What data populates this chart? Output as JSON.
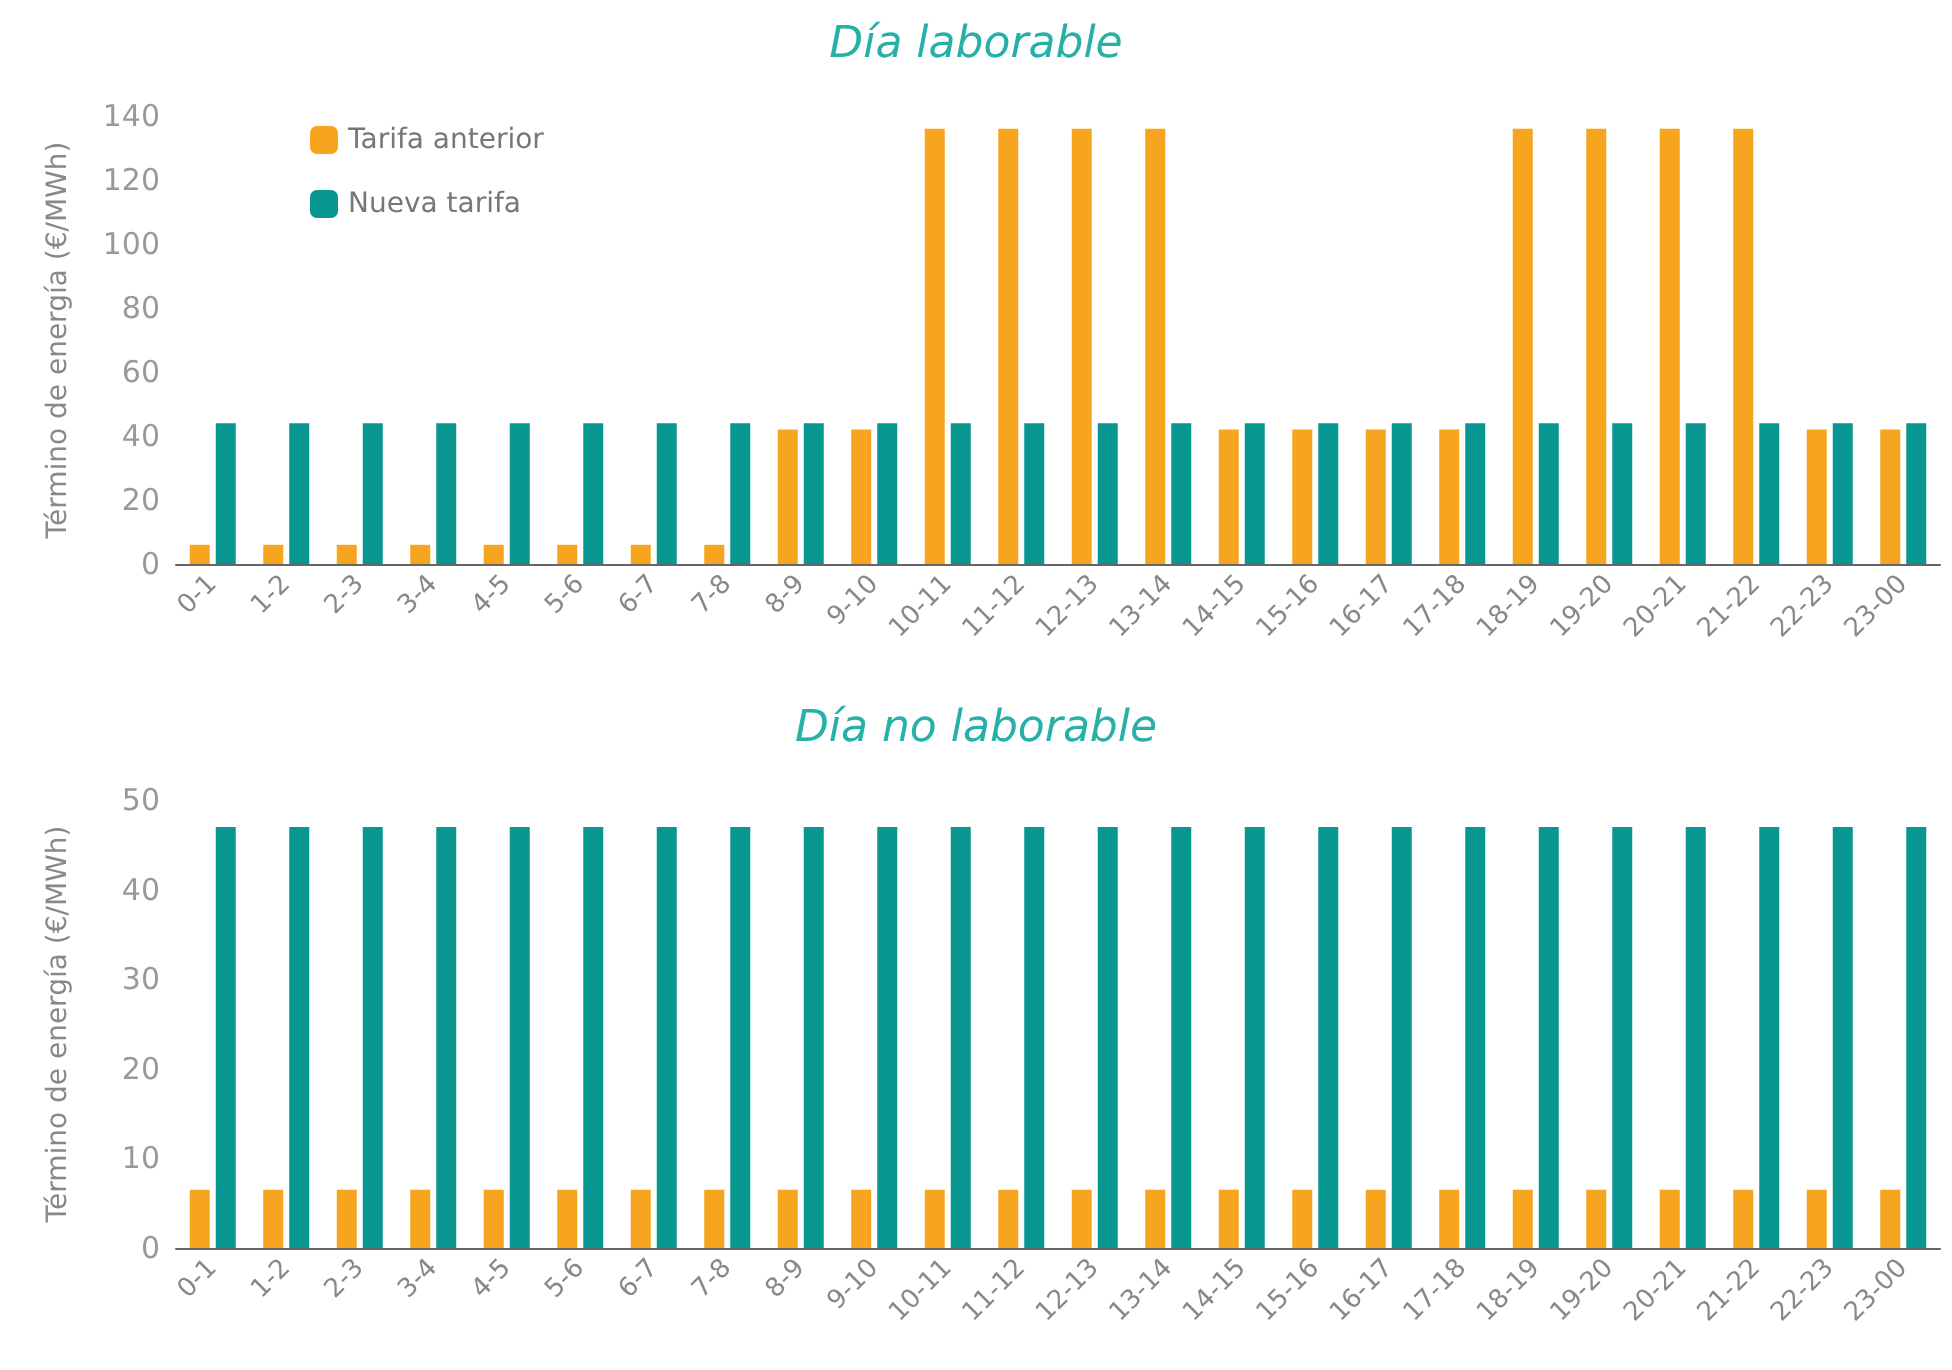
{
  "chart_data": [
    {
      "type": "bar",
      "title": "Día laborable",
      "ylabel": "Término de energía (€/MWh)",
      "categories": [
        "0-1",
        "1-2",
        "2-3",
        "3-4",
        "4-5",
        "5-6",
        "6-7",
        "7-8",
        "8-9",
        "9-10",
        "10-11",
        "11-12",
        "12-13",
        "13-14",
        "14-15",
        "15-16",
        "16-17",
        "17-18",
        "18-19",
        "19-20",
        "20-21",
        "21-22",
        "22-23",
        "23-00"
      ],
      "series": [
        {
          "name": "Tarifa anterior",
          "color": "#f7a51f",
          "values": [
            6,
            6,
            6,
            6,
            6,
            6,
            6,
            6,
            42,
            42,
            136,
            136,
            136,
            136,
            42,
            42,
            42,
            42,
            136,
            136,
            136,
            136,
            42,
            42
          ]
        },
        {
          "name": "Nueva tarifa",
          "color": "#089691",
          "values": [
            44,
            44,
            44,
            44,
            44,
            44,
            44,
            44,
            44,
            44,
            44,
            44,
            44,
            44,
            44,
            44,
            44,
            44,
            44,
            44,
            44,
            44,
            44,
            44
          ]
        }
      ],
      "ylim": [
        0,
        140
      ],
      "yticks": [
        0,
        20,
        40,
        60,
        80,
        100,
        120,
        140
      ],
      "grid": false,
      "legend": "top left"
    },
    {
      "type": "bar",
      "title": "Día no laborable",
      "ylabel": "Término de energía (€/MWh)",
      "categories": [
        "0-1",
        "1-2",
        "2-3",
        "3-4",
        "4-5",
        "5-6",
        "6-7",
        "7-8",
        "8-9",
        "9-10",
        "10-11",
        "11-12",
        "12-13",
        "13-14",
        "14-15",
        "15-16",
        "16-17",
        "17-18",
        "18-19",
        "19-20",
        "20-21",
        "21-22",
        "22-23",
        "23-00"
      ],
      "series": [
        {
          "color": "#f7a51f",
          "values": [
            6.5,
            6.5,
            6.5,
            6.5,
            6.5,
            6.5,
            6.5,
            6.5,
            6.5,
            6.5,
            6.5,
            6.5,
            6.5,
            6.5,
            6.5,
            6.5,
            6.5,
            6.5,
            6.5,
            6.5,
            6.5,
            6.5,
            6.5,
            6.5
          ]
        },
        {
          "color": "#089691",
          "values": [
            47,
            47,
            47,
            47,
            47,
            47,
            47,
            47,
            47,
            47,
            47,
            47,
            47,
            47,
            47,
            47,
            47,
            47,
            47,
            47,
            47,
            47,
            47,
            47
          ]
        }
      ],
      "ylim": [
        0,
        50
      ],
      "yticks": [
        0,
        10,
        20,
        30,
        40,
        50
      ],
      "grid": false,
      "legend": false
    }
  ]
}
